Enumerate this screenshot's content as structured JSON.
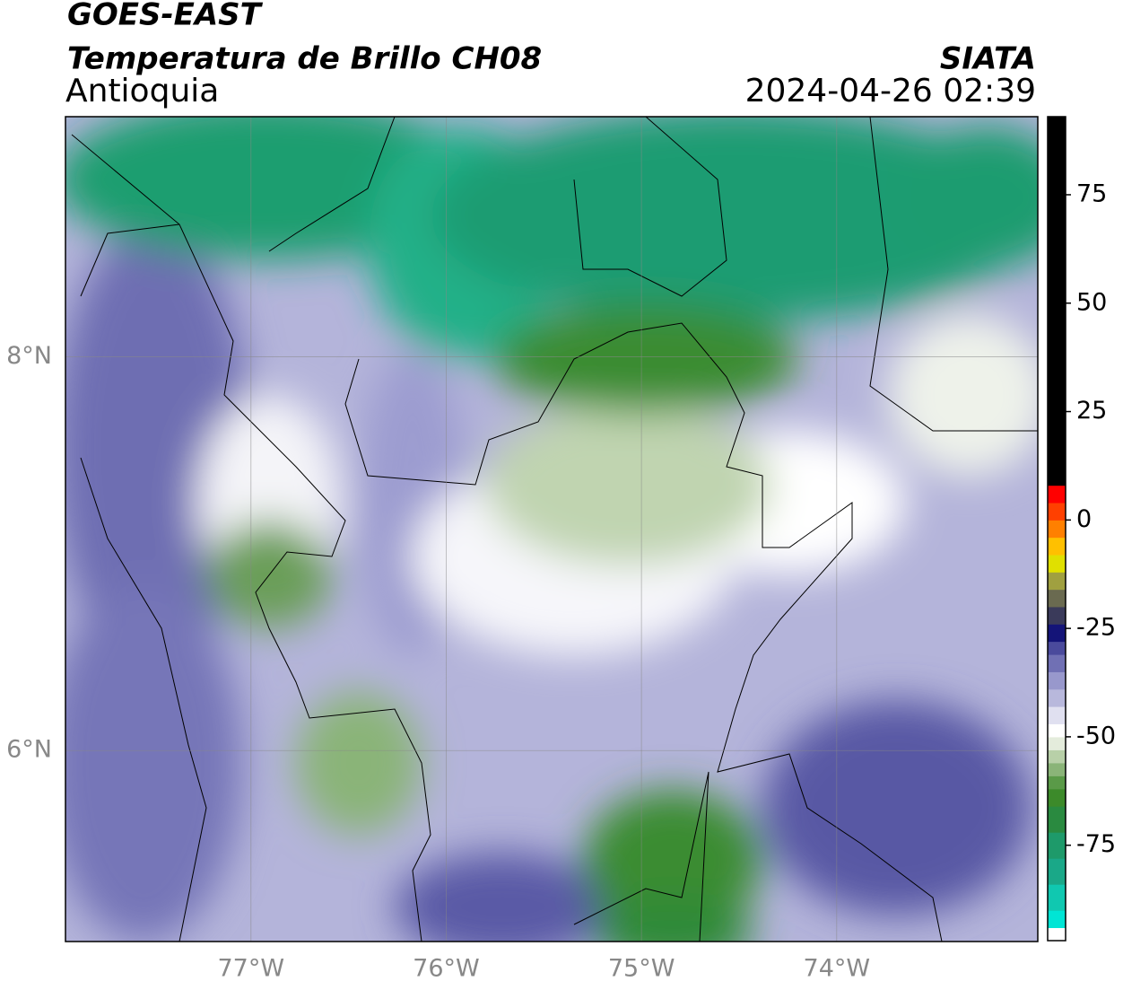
{
  "header": {
    "satellite": "GOES-EAST",
    "product": "Temperatura de Brillo CH08",
    "region": "Antioquia",
    "source": "SIATA",
    "datetime": "2024-04-26 02:39"
  },
  "map": {
    "xlim": [
      -77.95,
      -72.97
    ],
    "ylim": [
      5.03,
      9.22
    ],
    "xticks": [
      {
        "value": -77,
        "label": "77°W"
      },
      {
        "value": -76,
        "label": "76°W"
      },
      {
        "value": -75,
        "label": "75°W"
      },
      {
        "value": -74,
        "label": "74°W"
      }
    ],
    "yticks": [
      {
        "value": 6,
        "label": "6°N"
      },
      {
        "value": 8,
        "label": "8°N"
      }
    ],
    "grid": true
  },
  "colorbar": {
    "lim": [
      -97,
      93
    ],
    "ticks": [
      75,
      50,
      25,
      0,
      -25,
      -50,
      -75
    ],
    "stops": [
      {
        "value": -97,
        "color": "#ffffff"
      },
      {
        "value": -94,
        "color": "#00e5d5"
      },
      {
        "value": -90,
        "color": "#10c8b0"
      },
      {
        "value": -84,
        "color": "#1aa888"
      },
      {
        "value": -78,
        "color": "#1e9a6a"
      },
      {
        "value": -72,
        "color": "#2a8a40"
      },
      {
        "value": -66,
        "color": "#3c8a2a"
      },
      {
        "value": -62,
        "color": "#5a9a48"
      },
      {
        "value": -59,
        "color": "#8ab478"
      },
      {
        "value": -56,
        "color": "#b8d0a8"
      },
      {
        "value": -53,
        "color": "#e4ecdc"
      },
      {
        "value": -50,
        "color": "#ffffff"
      },
      {
        "value": -47,
        "color": "#e0e0f0"
      },
      {
        "value": -43,
        "color": "#b8b8dc"
      },
      {
        "value": -39,
        "color": "#9898cc"
      },
      {
        "value": -35,
        "color": "#7070b4"
      },
      {
        "value": -31,
        "color": "#4a4a9c"
      },
      {
        "value": -28,
        "color": "#141478"
      },
      {
        "value": -24,
        "color": "#3a3a5a"
      },
      {
        "value": -20,
        "color": "#6a6a50"
      },
      {
        "value": -16,
        "color": "#a0a040"
      },
      {
        "value": -12,
        "color": "#e0e000"
      },
      {
        "value": -8,
        "color": "#ffc000"
      },
      {
        "value": -4,
        "color": "#ff8000"
      },
      {
        "value": 0,
        "color": "#ff4000"
      },
      {
        "value": 4,
        "color": "#ff0000"
      },
      {
        "value": 8,
        "color": "#000000"
      }
    ]
  }
}
